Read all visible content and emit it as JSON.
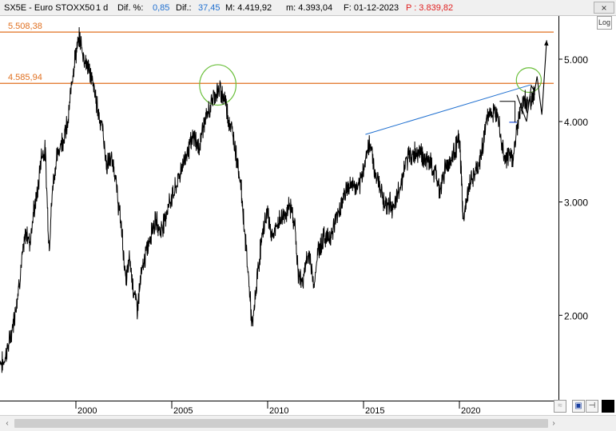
{
  "header": {
    "symbol": "SX5E - Euro STOXX50",
    "interval": "1 d",
    "dif_pct_label": "Dif. %:",
    "dif_pct_value": "0,85",
    "dif_label": "Dif.:",
    "dif_value": "37,45",
    "max_label": "M: 4.419,92",
    "min_label": "m: 4.393,04",
    "date_label": "F: 01-12-2023",
    "price_label": "P : 3.839,82",
    "close_glyph": "×"
  },
  "buttons": {
    "log_label": "Log"
  },
  "colors": {
    "resistance": "#e07020",
    "trendline": "#2070d0",
    "ellipse": "#6abf3a",
    "price": "#000000",
    "support": "#1f4fd8",
    "dif_value": "#1f6fd0",
    "price_readout": "#e02020"
  },
  "chart_data": {
    "type": "line",
    "y_scale": "log",
    "ylim": [
      1500,
      6500
    ],
    "xlim": [
      1995.85,
      2023.95
    ],
    "y_ticks": [
      {
        "value": 2000,
        "label": "2.000"
      },
      {
        "value": 3000,
        "label": "3.000"
      },
      {
        "value": 4000,
        "label": "4.000"
      },
      {
        "value": 5000,
        "label": "5.000"
      }
    ],
    "x_ticks": [
      {
        "value": 2000,
        "label": "2000"
      },
      {
        "value": 2005,
        "label": "2005"
      },
      {
        "value": 2010,
        "label": "2010"
      },
      {
        "value": 2015,
        "label": "2015"
      },
      {
        "value": 2020,
        "label": "2020"
      }
    ],
    "horizontal_lines": [
      {
        "value": 5508.38,
        "label": "5.508,38"
      },
      {
        "value": 4585.94,
        "label": "4.585,94"
      }
    ],
    "series": [
      {
        "x": [
          1996.0,
          1996.2,
          1996.4,
          1996.6,
          1996.8,
          1997.0,
          1997.2,
          1997.4,
          1997.6,
          1997.8,
          1998.0,
          1998.2,
          1998.4,
          1998.6,
          1998.8,
          1999.0,
          1999.2,
          1999.4,
          1999.6,
          1999.8,
          2000.0,
          2000.2,
          2000.4,
          2000.6,
          2000.8,
          2001.0,
          2001.2,
          2001.4,
          2001.6,
          2001.8,
          2002.0,
          2002.2,
          2002.4,
          2002.6,
          2002.8,
          2003.0,
          2003.2,
          2003.4,
          2003.6,
          2003.8,
          2004.0,
          2004.2,
          2004.4,
          2004.6,
          2004.8,
          2005.0,
          2005.2,
          2005.4,
          2005.6,
          2005.8,
          2006.0,
          2006.2,
          2006.4,
          2006.6,
          2006.8,
          2007.0,
          2007.2,
          2007.4,
          2007.6,
          2007.8,
          2008.0,
          2008.2,
          2008.4,
          2008.6,
          2008.8,
          2009.0,
          2009.2,
          2009.4,
          2009.6,
          2009.8,
          2010.0,
          2010.2,
          2010.4,
          2010.6,
          2010.8,
          2011.0,
          2011.2,
          2011.4,
          2011.6,
          2011.8,
          2012.0,
          2012.2,
          2012.4,
          2012.6,
          2012.8,
          2013.0,
          2013.2,
          2013.4,
          2013.6,
          2013.8,
          2014.0,
          2014.2,
          2014.4,
          2014.6,
          2014.8,
          2015.0,
          2015.2,
          2015.4,
          2015.6,
          2015.8,
          2016.0,
          2016.2,
          2016.4,
          2016.6,
          2016.8,
          2017.0,
          2017.2,
          2017.4,
          2017.6,
          2017.8,
          2018.0,
          2018.2,
          2018.4,
          2018.6,
          2018.8,
          2019.0,
          2019.2,
          2019.4,
          2019.6,
          2019.8,
          2020.0,
          2020.1,
          2020.2,
          2020.4,
          2020.6,
          2020.8,
          2021.0,
          2021.2,
          2021.4,
          2021.6,
          2021.8,
          2022.0,
          2022.2,
          2022.4,
          2022.6,
          2022.8,
          2023.0,
          2023.2,
          2023.4,
          2023.6,
          2023.8,
          2023.92
        ],
        "y": [
          1700,
          1680,
          1760,
          1850,
          2000,
          2200,
          2450,
          2700,
          2600,
          2900,
          3100,
          3550,
          3600,
          2550,
          3200,
          3500,
          3700,
          3800,
          4000,
          4700,
          5100,
          5400,
          5050,
          4900,
          4700,
          4400,
          4100,
          3900,
          3400,
          3500,
          3400,
          3000,
          2700,
          2250,
          2450,
          2200,
          2050,
          2300,
          2450,
          2600,
          2750,
          2800,
          2700,
          2800,
          2950,
          3050,
          3150,
          3300,
          3450,
          3600,
          3700,
          3800,
          3600,
          3900,
          4050,
          4200,
          4400,
          4450,
          4450,
          4300,
          4000,
          3800,
          3500,
          3200,
          2700,
          2300,
          1900,
          2200,
          2500,
          2750,
          2900,
          2650,
          2700,
          2800,
          2850,
          2900,
          2950,
          2800,
          2300,
          2250,
          2400,
          2500,
          2200,
          2500,
          2600,
          2650,
          2650,
          2700,
          2850,
          2950,
          3100,
          3150,
          3200,
          3150,
          3150,
          3400,
          3600,
          3700,
          3300,
          3250,
          3050,
          2950,
          3000,
          2900,
          3100,
          3250,
          3450,
          3550,
          3550,
          3600,
          3600,
          3450,
          3500,
          3350,
          3300,
          3100,
          3350,
          3450,
          3500,
          3650,
          3750,
          3300,
          2800,
          3050,
          3250,
          3300,
          3400,
          3650,
          4000,
          4150,
          4100,
          4200,
          3700,
          3500,
          3550,
          3500,
          3900,
          4200,
          4300,
          4250,
          4400,
          4400
        ],
        "projection": {
          "x": [
            2023.0,
            2023.5,
            2023.75,
            2023.92,
            2024.05,
            2024.3,
            2024.55
          ],
          "y": [
            4400,
            4000,
            4550,
            4450,
            4700,
            4100,
            5350
          ]
        }
      }
    ],
    "annotations": {
      "trendline": {
        "x1": 2015.1,
        "y1": 3820,
        "x2": 2023.7,
        "y2": 4560
      },
      "ellipses": [
        {
          "x": 2007.4,
          "y": 4560,
          "rx_years": 0.95,
          "ry_value_ratio": 1.075
        },
        {
          "x": 2023.62,
          "y": 4640,
          "rx_years": 0.65,
          "ry_value_ratio": 1.045
        }
      ],
      "support_segment": {
        "x1": 2022.6,
        "x2": 2023.0,
        "y": 3990
      },
      "range_box": {
        "x1": 2022.1,
        "x2": 2022.9,
        "y_top": 4300,
        "y_bot": 3990
      }
    }
  }
}
